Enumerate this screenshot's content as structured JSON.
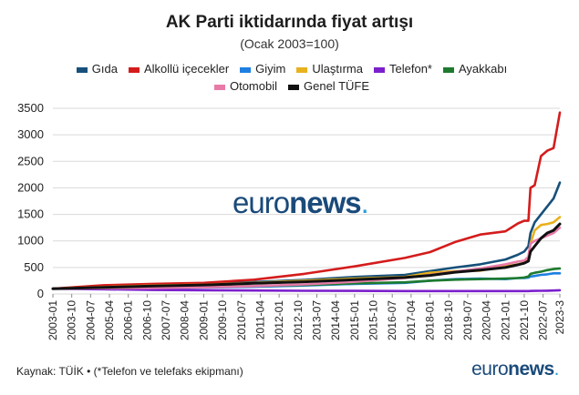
{
  "chart_data": {
    "type": "line",
    "title": "AK Parti iktidarında fiyat artışı",
    "subtitle": "(Ocak 2003=100)",
    "xlabel": "",
    "ylabel": "",
    "ylim": [
      0,
      3500
    ],
    "yticks": [
      0,
      500,
      1000,
      1500,
      2000,
      2500,
      3000,
      3500
    ],
    "grid": "horizontal",
    "legend_position": "top",
    "x_ticks": [
      "2003-01",
      "2003-10",
      "2004-07",
      "2005-04",
      "2006-01",
      "2006-10",
      "2007-07",
      "2008-04",
      "2009-01",
      "2009-10",
      "2010-07",
      "2011-04",
      "2012-01",
      "2012-10",
      "2013-07",
      "2014-04",
      "2015-01",
      "2015-10",
      "2016-07",
      "2017-04",
      "2018-01",
      "2018-10",
      "2019-07",
      "2020-04",
      "2021-01",
      "2021-10",
      "2022-07",
      "2023-3"
    ],
    "x": [
      "2003-01",
      "2005-01",
      "2007-01",
      "2009-01",
      "2011-01",
      "2013-01",
      "2015-01",
      "2017-01",
      "2018-01",
      "2019-01",
      "2020-01",
      "2021-01",
      "2021-07",
      "2021-10",
      "2021-12",
      "2022-01",
      "2022-03",
      "2022-06",
      "2022-09",
      "2022-12",
      "2023-03"
    ],
    "series": [
      {
        "name": "Gıda",
        "color": "#16507a",
        "values": [
          100,
          125,
          160,
          195,
          225,
          265,
          320,
          360,
          430,
          500,
          560,
          650,
          740,
          800,
          900,
          1150,
          1350,
          1500,
          1650,
          1800,
          2100
        ]
      },
      {
        "name": "Alkollü içecekler",
        "color": "#d41c1c",
        "values": [
          100,
          165,
          190,
          210,
          270,
          380,
          520,
          680,
          790,
          980,
          1120,
          1180,
          1330,
          1380,
          1380,
          2000,
          2050,
          2600,
          2700,
          2750,
          3420
        ]
      },
      {
        "name": "Giyim",
        "color": "#1e7fe0",
        "values": [
          100,
          105,
          110,
          120,
          135,
          160,
          190,
          210,
          250,
          280,
          290,
          280,
          300,
          300,
          310,
          330,
          340,
          360,
          370,
          390,
          390
        ]
      },
      {
        "name": "Ulaştırma",
        "color": "#e8b11e",
        "values": [
          100,
          130,
          160,
          175,
          210,
          250,
          290,
          320,
          400,
          430,
          440,
          520,
          560,
          590,
          700,
          950,
          1200,
          1300,
          1320,
          1350,
          1450
        ]
      },
      {
        "name": "Telefon*",
        "color": "#7b1fcc",
        "values": [
          100,
          90,
          75,
          70,
          65,
          60,
          58,
          55,
          55,
          55,
          55,
          55,
          55,
          55,
          55,
          56,
          58,
          60,
          62,
          65,
          70
        ]
      },
      {
        "name": "Ayakkabı",
        "color": "#1d7a2e",
        "values": [
          100,
          110,
          120,
          135,
          150,
          170,
          200,
          220,
          250,
          270,
          280,
          290,
          300,
          310,
          330,
          380,
          400,
          420,
          450,
          470,
          480
        ]
      },
      {
        "name": "Otomobil",
        "color": "#e87aa8",
        "values": [
          100,
          110,
          115,
          125,
          150,
          180,
          230,
          300,
          360,
          420,
          480,
          560,
          610,
          630,
          700,
          950,
          1000,
          1050,
          1100,
          1150,
          1250
        ]
      },
      {
        "name": "Genel TÜFE",
        "color": "#111111",
        "values": [
          100,
          125,
          150,
          170,
          200,
          230,
          270,
          310,
          350,
          410,
          450,
          500,
          550,
          580,
          620,
          800,
          900,
          1050,
          1150,
          1200,
          1320
        ]
      }
    ]
  },
  "footer": {
    "source": "Kaynak: TÜİK • (*Telefon ve telefaks ekipmanı)",
    "logo_main": "euro",
    "logo_bold": "news",
    "logo_dot": "."
  },
  "watermark": {
    "main": "euro",
    "bold": "news",
    "dot": "."
  }
}
